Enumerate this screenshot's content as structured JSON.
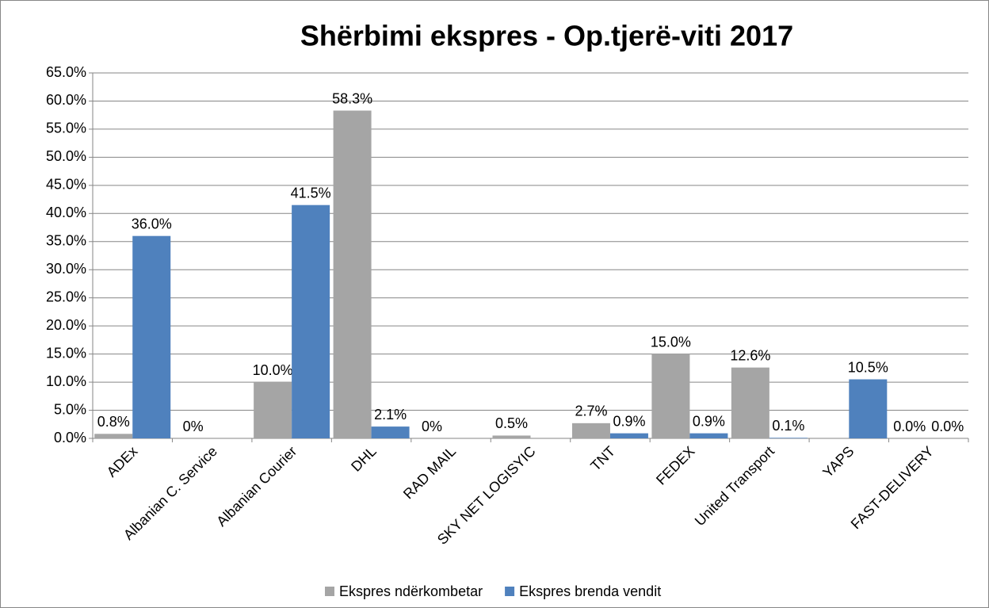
{
  "chart_data": {
    "type": "bar",
    "title": "Shërbimi ekspres - Op.tjerë-viti 2017",
    "categories": [
      "ADEx",
      "Albanian C. Service",
      "Albanian Courier",
      "DHL",
      "RAD MAIL",
      "SKY NET LOGISYIC",
      "TNT",
      "FEDEX",
      "United Transport",
      "YAPS",
      "FAST-DELIVERY"
    ],
    "series": [
      {
        "name": "Ekspres ndërkombetar",
        "color": "#a5a5a5",
        "values": [
          0.8,
          0,
          10.0,
          58.3,
          0,
          0.5,
          2.7,
          15.0,
          12.6,
          null,
          0.0
        ],
        "value_labels": [
          "0.8%",
          "0%",
          "10.0%",
          "58.3%",
          "0%",
          "0.5%",
          "2.7%",
          "15.0%",
          "12.6%",
          null,
          "0.0%"
        ]
      },
      {
        "name": "Ekspres brenda vendit",
        "color": "#4f81bd",
        "values": [
          36.0,
          null,
          41.5,
          2.1,
          null,
          null,
          0.9,
          0.9,
          0.1,
          10.5,
          0.0
        ],
        "value_labels": [
          "36.0%",
          null,
          "41.5%",
          "2.1%",
          null,
          null,
          "0.9%",
          "0.9%",
          "0.1%",
          "10.5%",
          "0.0%"
        ]
      }
    ],
    "ylim": [
      0,
      65
    ],
    "yticks": [
      {
        "value": 0,
        "label": "0.0%"
      },
      {
        "value": 5,
        "label": "5.0%"
      },
      {
        "value": 10,
        "label": "10.0%"
      },
      {
        "value": 15,
        "label": "15.0%"
      },
      {
        "value": 20,
        "label": "20.0%"
      },
      {
        "value": 25,
        "label": "25.0%"
      },
      {
        "value": 30,
        "label": "30.0%"
      },
      {
        "value": 35,
        "label": "35.0%"
      },
      {
        "value": 40,
        "label": "40.0%"
      },
      {
        "value": 45,
        "label": "45.0%"
      },
      {
        "value": 50,
        "label": "50.0%"
      },
      {
        "value": 55,
        "label": "55.0%"
      },
      {
        "value": 60,
        "label": "60.0%"
      },
      {
        "value": 65,
        "label": "65.0%"
      }
    ],
    "grid": true,
    "legend": "bottom"
  }
}
